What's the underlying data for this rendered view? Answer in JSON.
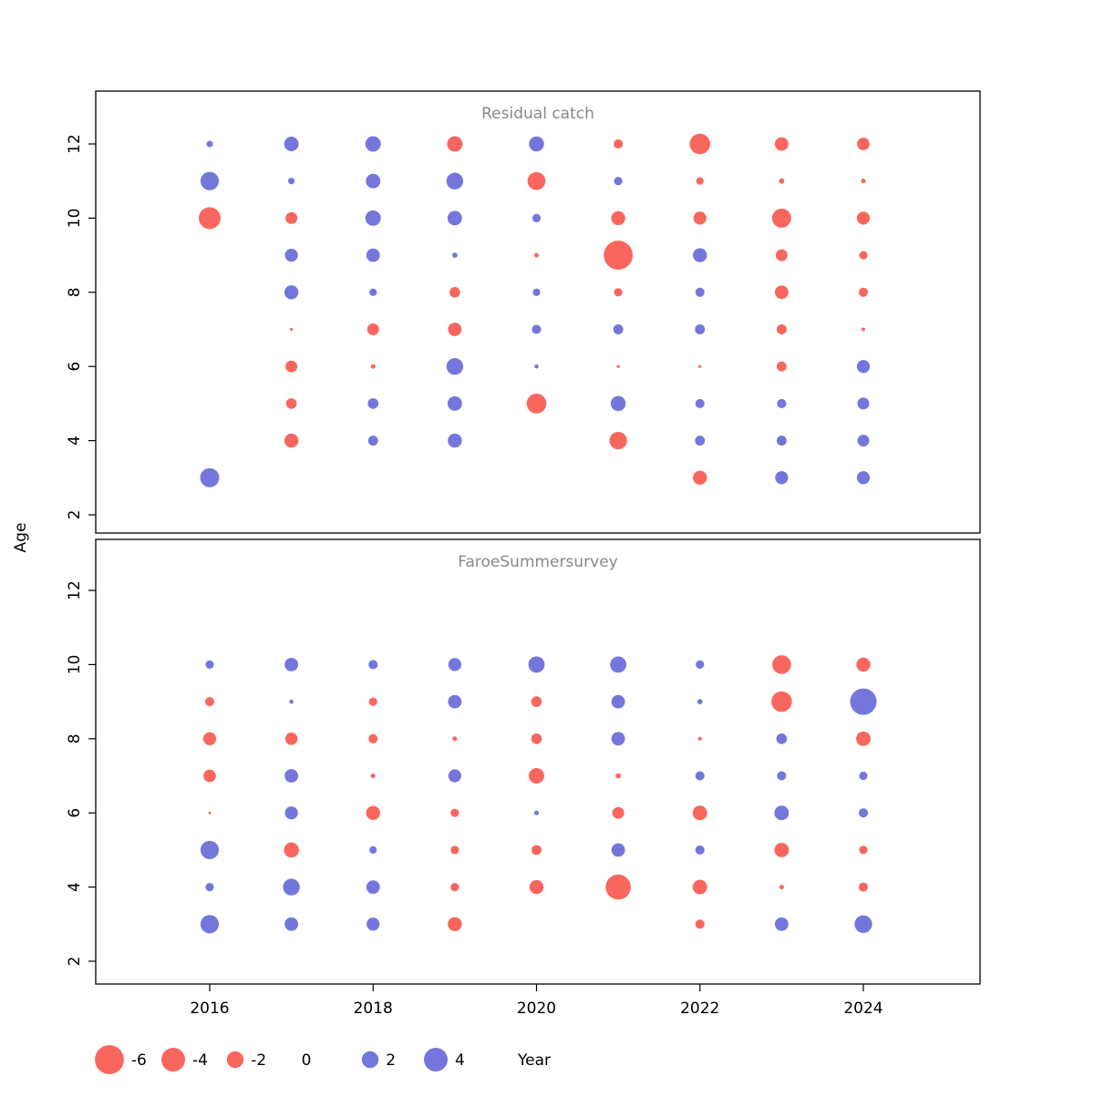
{
  "figure": {
    "ylabel": "Age",
    "xlabel": "Year",
    "colors": {
      "negative": "#f9665e",
      "positive": "#7476db",
      "title_gray": "#888888",
      "axis_black": "#000000"
    },
    "legend": {
      "values": [
        -6,
        -4,
        -2,
        0,
        2,
        4
      ],
      "title": "Year"
    }
  },
  "chart_data": [
    {
      "type": "bubble",
      "title": "Residual catch",
      "xlabel": "Year",
      "ylabel": "Age",
      "x_ticks": [
        2016,
        2018,
        2020,
        2022,
        2024
      ],
      "y_ticks": [
        2,
        4,
        6,
        8,
        10,
        12
      ],
      "xlim": [
        2014.6,
        2025.4
      ],
      "ylim": [
        1.4,
        13.4
      ],
      "point_format": [
        "year",
        "age",
        "value"
      ],
      "points": [
        [
          2016,
          12,
          0.3
        ],
        [
          2016,
          11,
          2.4
        ],
        [
          2016,
          10,
          -3.4
        ],
        [
          2016,
          3,
          2.6
        ],
        [
          2017,
          12,
          1.5
        ],
        [
          2017,
          11,
          0.3
        ],
        [
          2017,
          10,
          -1.0
        ],
        [
          2017,
          9,
          1.2
        ],
        [
          2017,
          8,
          1.4
        ],
        [
          2017,
          7,
          -0.06
        ],
        [
          2017,
          6,
          -1.0
        ],
        [
          2017,
          5,
          -0.8
        ],
        [
          2017,
          4,
          -1.4
        ],
        [
          2018,
          12,
          1.7
        ],
        [
          2018,
          11,
          1.5
        ],
        [
          2018,
          10,
          1.7
        ],
        [
          2018,
          9,
          1.3
        ],
        [
          2018,
          8,
          0.4
        ],
        [
          2018,
          7,
          -1.0
        ],
        [
          2018,
          6,
          -0.15
        ],
        [
          2018,
          5,
          0.8
        ],
        [
          2018,
          4,
          0.7
        ],
        [
          2019,
          12,
          -1.7
        ],
        [
          2019,
          11,
          2.0
        ],
        [
          2019,
          10,
          1.5
        ],
        [
          2019,
          9,
          0.2
        ],
        [
          2019,
          8,
          -0.8
        ],
        [
          2019,
          7,
          -1.3
        ],
        [
          2019,
          6,
          2.0
        ],
        [
          2019,
          5,
          1.5
        ],
        [
          2019,
          4,
          1.4
        ],
        [
          2020,
          12,
          1.6
        ],
        [
          2020,
          11,
          -2.3
        ],
        [
          2020,
          10,
          0.5
        ],
        [
          2020,
          9,
          -0.15
        ],
        [
          2020,
          8,
          0.4
        ],
        [
          2020,
          7,
          0.6
        ],
        [
          2020,
          6,
          0.12
        ],
        [
          2020,
          5,
          -2.8
        ],
        [
          2021,
          12,
          -0.6
        ],
        [
          2021,
          11,
          0.5
        ],
        [
          2021,
          10,
          -1.4
        ],
        [
          2021,
          9,
          -6.0
        ],
        [
          2021,
          8,
          -0.5
        ],
        [
          2021,
          7,
          0.7
        ],
        [
          2021,
          6,
          -0.06
        ],
        [
          2021,
          5,
          1.6
        ],
        [
          2021,
          4,
          -2.2
        ],
        [
          2022,
          12,
          -3.0
        ],
        [
          2022,
          11,
          -0.4
        ],
        [
          2022,
          10,
          -1.2
        ],
        [
          2022,
          9,
          1.4
        ],
        [
          2022,
          8,
          0.6
        ],
        [
          2022,
          7,
          0.7
        ],
        [
          2022,
          6,
          -0.06
        ],
        [
          2022,
          5,
          0.6
        ],
        [
          2022,
          4,
          0.7
        ],
        [
          2022,
          3,
          -1.4
        ],
        [
          2023,
          12,
          -1.3
        ],
        [
          2023,
          11,
          -0.2
        ],
        [
          2023,
          10,
          -2.6
        ],
        [
          2023,
          9,
          -1.0
        ],
        [
          2023,
          8,
          -1.3
        ],
        [
          2023,
          7,
          -0.7
        ],
        [
          2023,
          6,
          -0.7
        ],
        [
          2023,
          5,
          0.6
        ],
        [
          2023,
          4,
          0.7
        ],
        [
          2023,
          3,
          1.2
        ],
        [
          2024,
          12,
          -1.1
        ],
        [
          2024,
          11,
          -0.15
        ],
        [
          2024,
          10,
          -1.2
        ],
        [
          2024,
          9,
          -0.5
        ],
        [
          2024,
          8,
          -0.6
        ],
        [
          2024,
          7,
          -0.1
        ],
        [
          2024,
          6,
          1.2
        ],
        [
          2024,
          5,
          1.0
        ],
        [
          2024,
          4,
          1.0
        ],
        [
          2024,
          3,
          1.2
        ]
      ]
    },
    {
      "type": "bubble",
      "title": "FaroeSummersurvey",
      "xlabel": "Year",
      "ylabel": "Age",
      "x_ticks": [
        2016,
        2018,
        2020,
        2022,
        2024
      ],
      "y_ticks": [
        2,
        4,
        6,
        8,
        10,
        12
      ],
      "xlim": [
        2014.6,
        2025.4
      ],
      "ylim": [
        1.4,
        13.4
      ],
      "point_format": [
        "year",
        "age",
        "value"
      ],
      "points": [
        [
          2016,
          10,
          0.5
        ],
        [
          2016,
          9,
          -0.6
        ],
        [
          2016,
          8,
          -1.2
        ],
        [
          2016,
          7,
          -1.1
        ],
        [
          2016,
          6,
          -0.05
        ],
        [
          2016,
          5,
          2.4
        ],
        [
          2016,
          4,
          0.5
        ],
        [
          2016,
          3,
          2.4
        ],
        [
          2017,
          10,
          1.3
        ],
        [
          2017,
          9,
          0.12
        ],
        [
          2017,
          8,
          -1.1
        ],
        [
          2017,
          7,
          1.3
        ],
        [
          2017,
          6,
          1.2
        ],
        [
          2017,
          5,
          -1.6
        ],
        [
          2017,
          4,
          2.0
        ],
        [
          2017,
          3,
          1.3
        ],
        [
          2018,
          10,
          0.6
        ],
        [
          2018,
          9,
          -0.5
        ],
        [
          2018,
          8,
          -0.6
        ],
        [
          2018,
          7,
          -0.15
        ],
        [
          2018,
          6,
          -1.4
        ],
        [
          2018,
          5,
          0.4
        ],
        [
          2018,
          4,
          1.3
        ],
        [
          2018,
          3,
          1.2
        ],
        [
          2019,
          10,
          1.2
        ],
        [
          2019,
          9,
          1.3
        ],
        [
          2019,
          8,
          -0.15
        ],
        [
          2019,
          7,
          1.2
        ],
        [
          2019,
          6,
          -0.5
        ],
        [
          2019,
          5,
          -0.5
        ],
        [
          2019,
          4,
          -0.5
        ],
        [
          2019,
          3,
          -1.4
        ],
        [
          2020,
          10,
          1.9
        ],
        [
          2020,
          9,
          -0.8
        ],
        [
          2020,
          8,
          -0.8
        ],
        [
          2020,
          7,
          -1.7
        ],
        [
          2020,
          6,
          0.15
        ],
        [
          2020,
          5,
          -0.7
        ],
        [
          2020,
          4,
          -1.4
        ],
        [
          2021,
          10,
          1.9
        ],
        [
          2021,
          9,
          1.3
        ],
        [
          2021,
          8,
          1.3
        ],
        [
          2021,
          7,
          -0.2
        ],
        [
          2021,
          6,
          -1.0
        ],
        [
          2021,
          5,
          1.3
        ],
        [
          2021,
          4,
          -4.5
        ],
        [
          2022,
          10,
          0.5
        ],
        [
          2022,
          9,
          0.2
        ],
        [
          2022,
          8,
          -0.1
        ],
        [
          2022,
          7,
          0.6
        ],
        [
          2022,
          6,
          -1.5
        ],
        [
          2022,
          5,
          0.6
        ],
        [
          2022,
          4,
          -1.5
        ],
        [
          2022,
          3,
          -0.6
        ],
        [
          2023,
          10,
          -2.5
        ],
        [
          2023,
          9,
          -3.0
        ],
        [
          2023,
          8,
          0.8
        ],
        [
          2023,
          7,
          0.6
        ],
        [
          2023,
          6,
          1.5
        ],
        [
          2023,
          5,
          -1.5
        ],
        [
          2023,
          4,
          -0.15
        ],
        [
          2023,
          3,
          1.3
        ],
        [
          2024,
          10,
          -1.4
        ],
        [
          2024,
          9,
          5.0
        ],
        [
          2024,
          8,
          -1.5
        ],
        [
          2024,
          7,
          0.5
        ],
        [
          2024,
          6,
          0.6
        ],
        [
          2024,
          5,
          -0.5
        ],
        [
          2024,
          4,
          -0.6
        ],
        [
          2024,
          3,
          2.2
        ]
      ]
    }
  ]
}
